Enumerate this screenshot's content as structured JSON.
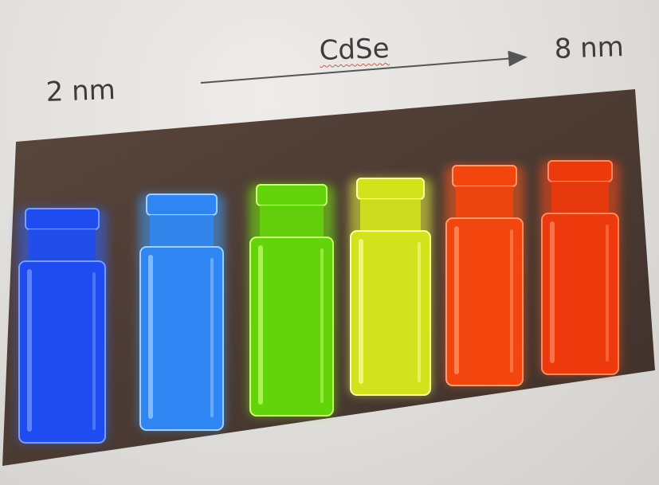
{
  "labels": {
    "start_size": "2 nm",
    "material": "CdSe",
    "end_size": "8 nm"
  },
  "colors": {
    "slide_background": "#e6e4e1",
    "photo_background": "#4b3b33",
    "arrow": "#555555"
  },
  "vials": [
    {
      "name": "vial-blue",
      "glow": "#2f63ff",
      "body": "#1f4cf0",
      "edge": "#7a9bff"
    },
    {
      "name": "vial-sky-blue",
      "glow": "#3f9cff",
      "body": "#2f86f2",
      "edge": "#9fd0ff"
    },
    {
      "name": "vial-green",
      "glow": "#77ee10",
      "body": "#63d40a",
      "edge": "#c8ff70"
    },
    {
      "name": "vial-yellow",
      "glow": "#eaf43a",
      "body": "#d2e21c",
      "edge": "#ffffa0"
    },
    {
      "name": "vial-orange",
      "glow": "#ff5a1a",
      "body": "#f2460e",
      "edge": "#ff9a70"
    },
    {
      "name": "vial-red-orange",
      "glow": "#ff4a16",
      "body": "#ec3a0c",
      "edge": "#ff8a62"
    }
  ]
}
